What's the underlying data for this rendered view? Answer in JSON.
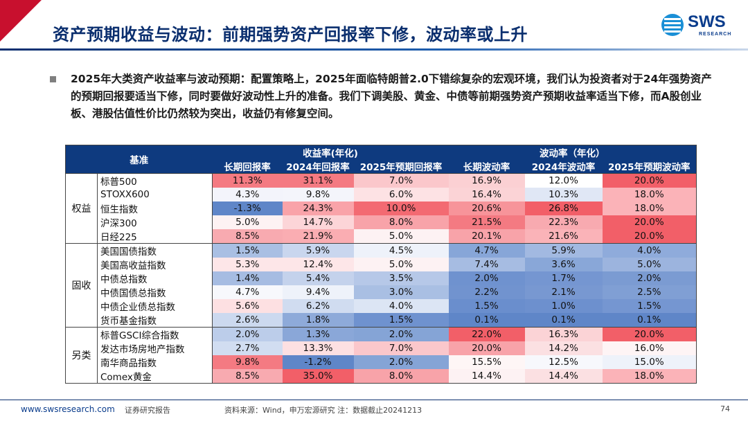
{
  "header": {
    "title": "资产预期收益与波动：前期强势资产回报率下修，波动率或上升",
    "logo_text": "SWS",
    "logo_sub": "RESEARCH",
    "accent_red": "#c8102e",
    "accent_navy": "#0e3a7f"
  },
  "bullet": {
    "icon": "square-bullet-icon",
    "text": "2025年大类资产收益率与波动预期：配置策略上，2025年面临特朗普2.0下错综复杂的宏观环境，我们认为投资者对于24年强势资产的预期回报要适当下修，同时要做好波动性上升的准备。我们下调美股、黄金、中债等前期强势资产预期收益率适当下修，而A股创业板、港股估值性价比仍然较为突出，收益仍有修复空间。"
  },
  "table": {
    "header_base": "基准",
    "header_return_group": "收益率(年化)",
    "header_vol_group": "波动率（年化）",
    "columns": [
      "长期回报率",
      "2024年回报率",
      "2025年预期回报率",
      "长期波动率",
      "2024年波动率",
      "2025年预期波动率"
    ],
    "groups": [
      {
        "name": "权益",
        "rows": [
          {
            "name": "标普500",
            "cells": [
              {
                "v": "11.3%",
                "bg": "#f47a82"
              },
              {
                "v": "31.1%",
                "bg": "#f47a82"
              },
              {
                "v": "7.0%",
                "bg": "#fbc7cb"
              },
              {
                "v": "16.9%",
                "bg": "#fbd0d3"
              },
              {
                "v": "12.0%",
                "bg": "#ffffff"
              },
              {
                "v": "20.0%",
                "bg": "#f25f68"
              }
            ]
          },
          {
            "name": "STOXX600",
            "cells": [
              {
                "v": "4.3%",
                "bg": "#f3f4fb"
              },
              {
                "v": "9.8%",
                "bg": "#f4f5fb"
              },
              {
                "v": "6.0%",
                "bg": "#fde2e4"
              },
              {
                "v": "16.4%",
                "bg": "#fbd3d6"
              },
              {
                "v": "10.3%",
                "bg": "#e0e7f5"
              },
              {
                "v": "18.0%",
                "bg": "#fbb3b8"
              }
            ]
          },
          {
            "name": "恒生指数",
            "cells": [
              {
                "v": "-1.3%",
                "bg": "#5f86c8"
              },
              {
                "v": "24.3%",
                "bg": "#f9a3a9"
              },
              {
                "v": "10.0%",
                "bg": "#f36a72"
              },
              {
                "v": "20.6%",
                "bg": "#f7949a"
              },
              {
                "v": "26.8%",
                "bg": "#f25f68"
              },
              {
                "v": "18.0%",
                "bg": "#fbb3b8"
              }
            ]
          },
          {
            "name": "沪深300",
            "cells": [
              {
                "v": "5.0%",
                "bg": "#fdf2f3"
              },
              {
                "v": "14.7%",
                "bg": "#fcd5d8"
              },
              {
                "v": "8.0%",
                "bg": "#f8a3a9"
              },
              {
                "v": "21.5%",
                "bg": "#f47a82"
              },
              {
                "v": "22.3%",
                "bg": "#f8aab0"
              },
              {
                "v": "20.0%",
                "bg": "#f25f68"
              }
            ]
          },
          {
            "name": "日经225",
            "cells": [
              {
                "v": "8.5%",
                "bg": "#f8aab0"
              },
              {
                "v": "21.9%",
                "bg": "#faadb2"
              },
              {
                "v": "5.0%",
                "bg": "#fdf2f3"
              },
              {
                "v": "20.1%",
                "bg": "#f8a3a9"
              },
              {
                "v": "21.6%",
                "bg": "#fab3b8"
              },
              {
                "v": "20.0%",
                "bg": "#f25f68"
              }
            ]
          }
        ]
      },
      {
        "name": "固收",
        "rows": [
          {
            "name": "美国国债指数",
            "cells": [
              {
                "v": "1.5%",
                "bg": "#a9bfe3"
              },
              {
                "v": "5.9%",
                "bg": "#c9d6ee"
              },
              {
                "v": "4.5%",
                "bg": "#eef2fa"
              },
              {
                "v": "4.7%",
                "bg": "#87a6d8"
              },
              {
                "v": "5.9%",
                "bg": "#a2b9e1"
              },
              {
                "v": "4.0%",
                "bg": "#8fabdb"
              }
            ]
          },
          {
            "name": "美国高收益指数",
            "cells": [
              {
                "v": "5.3%",
                "bg": "#fde6e8"
              },
              {
                "v": "12.4%",
                "bg": "#fde6e8"
              },
              {
                "v": "5.0%",
                "bg": "#fdf2f3"
              },
              {
                "v": "7.4%",
                "bg": "#a6bce2"
              },
              {
                "v": "3.6%",
                "bg": "#89a7d8"
              },
              {
                "v": "5.0%",
                "bg": "#9cb4de"
              }
            ]
          },
          {
            "name": "中债总指数",
            "cells": [
              {
                "v": "1.4%",
                "bg": "#a6bce2"
              },
              {
                "v": "5.4%",
                "bg": "#c4d2ec"
              },
              {
                "v": "3.5%",
                "bg": "#b6c8e8"
              },
              {
                "v": "2.0%",
                "bg": "#6f92cf"
              },
              {
                "v": "1.7%",
                "bg": "#7596d1"
              },
              {
                "v": "2.0%",
                "bg": "#7b9bd2"
              }
            ]
          },
          {
            "name": "中债国债总指数",
            "cells": [
              {
                "v": "4.7%",
                "bg": "#f7f8fc"
              },
              {
                "v": "9.4%",
                "bg": "#eef2fa"
              },
              {
                "v": "3.0%",
                "bg": "#a9bfe3"
              },
              {
                "v": "2.2%",
                "bg": "#7193cf"
              },
              {
                "v": "2.1%",
                "bg": "#7898d1"
              },
              {
                "v": "2.5%",
                "bg": "#809fd4"
              }
            ]
          },
          {
            "name": "中债企业债总指数",
            "cells": [
              {
                "v": "5.6%",
                "bg": "#fde0e2"
              },
              {
                "v": "6.2%",
                "bg": "#d0dcf0"
              },
              {
                "v": "4.0%",
                "bg": "#dce5f4"
              },
              {
                "v": "1.5%",
                "bg": "#6a8ecd"
              },
              {
                "v": "1.0%",
                "bg": "#6d90ce"
              },
              {
                "v": "1.5%",
                "bg": "#7596d1"
              }
            ]
          },
          {
            "name": "货币基金指数",
            "cells": [
              {
                "v": "2.6%",
                "bg": "#ccd9ef"
              },
              {
                "v": "1.8%",
                "bg": "#8eaad9"
              },
              {
                "v": "1.5%",
                "bg": "#6f92cf"
              },
              {
                "v": "0.1%",
                "bg": "#5f86c8"
              },
              {
                "v": "0.1%",
                "bg": "#5f86c8"
              },
              {
                "v": "0.1%",
                "bg": "#5f86c8"
              }
            ]
          }
        ]
      },
      {
        "name": "另类",
        "rows": [
          {
            "name": "标普GSCI综合指数",
            "cells": [
              {
                "v": "2.0%",
                "bg": "#bccdea"
              },
              {
                "v": "1.3%",
                "bg": "#8aa7d8"
              },
              {
                "v": "2.0%",
                "bg": "#85a4d6"
              },
              {
                "v": "22.0%",
                "bg": "#f25f68"
              },
              {
                "v": "16.3%",
                "bg": "#fbd3d6"
              },
              {
                "v": "20.0%",
                "bg": "#f25f68"
              }
            ]
          },
          {
            "name": "发达市场房地产指数",
            "cells": [
              {
                "v": "2.7%",
                "bg": "#d1ddf1"
              },
              {
                "v": "13.3%",
                "bg": "#fde0e2"
              },
              {
                "v": "7.0%",
                "bg": "#fbc7cb"
              },
              {
                "v": "20.0%",
                "bg": "#f8a3a9"
              },
              {
                "v": "14.2%",
                "bg": "#fbe0e2"
              },
              {
                "v": "16.0%",
                "bg": "#fef4f5"
              }
            ]
          },
          {
            "name": "南华商品指数",
            "cells": [
              {
                "v": "9.8%",
                "bg": "#f47a82"
              },
              {
                "v": "-1.2%",
                "bg": "#5f86c8"
              },
              {
                "v": "2.0%",
                "bg": "#85a4d6"
              },
              {
                "v": "15.5%",
                "bg": "#fef6f6"
              },
              {
                "v": "12.5%",
                "bg": "#f7f8fc"
              },
              {
                "v": "15.0%",
                "bg": "#eef2fa"
              }
            ]
          },
          {
            "name": "Comex黄金",
            "cells": [
              {
                "v": "8.5%",
                "bg": "#f8aab0"
              },
              {
                "v": "35.0%",
                "bg": "#f25f68"
              },
              {
                "v": "8.0%",
                "bg": "#f8a3a9"
              },
              {
                "v": "14.4%",
                "bg": "#fdf2f3"
              },
              {
                "v": "14.4%",
                "bg": "#fbe0e2"
              },
              {
                "v": "18.0%",
                "bg": "#fbb3b8"
              }
            ]
          }
        ]
      }
    ]
  },
  "footer": {
    "url": "www.swsresearch.com",
    "doc_type": "证券研究报告",
    "source": "资料来源：Wind，申万宏源研究  注：数据截止20241213",
    "page": "74"
  }
}
